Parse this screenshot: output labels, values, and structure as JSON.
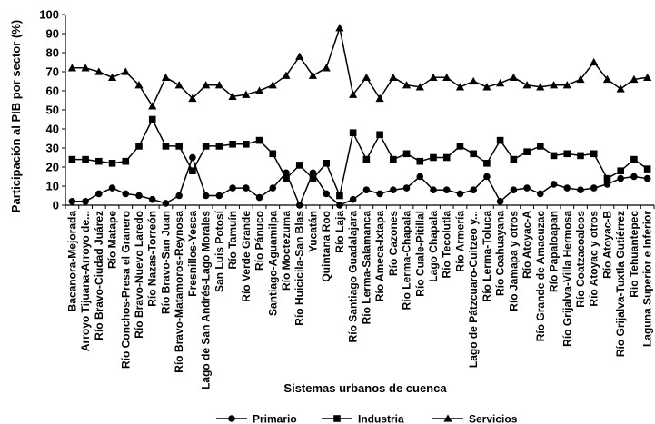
{
  "chart_data": {
    "type": "line",
    "title": "",
    "xlabel": "Sistemas urbanos de cuenca",
    "ylabel": "Participación al PIB por sector (%)",
    "ylim": [
      0,
      100
    ],
    "yticks": [
      0,
      10,
      20,
      30,
      40,
      50,
      60,
      70,
      80,
      90,
      100
    ],
    "grid": false,
    "legend": "bottom",
    "categories": [
      "Bacanora-Mejorada",
      "Arroyo Tijuana-Arroyo de...",
      "Río Bravo-Ciudad Juárez",
      "Río Matape",
      "Río Conchos-Presa el Granero",
      "Río Bravo-Nuevo Laredo",
      "Río Nazas-Torreón",
      "Río Bravo-San Juan",
      "Río Bravo-Matamoros-Reynosa",
      "Fresnillos-Yesca",
      "Lago de San Andrés-Lago Morales",
      "San Luis Potosí",
      "Río Tamuín",
      "Río Verde Grande",
      "Río Pánuco",
      "Santiago-Aguamilpa",
      "Río Moctezuma",
      "Río Huicicila-San Blas",
      "Yucatán",
      "Quintana Roo",
      "Río Laja",
      "Río Santiago Guadalajara",
      "Río Lerma-Salamanca",
      "Río Ameca-Ixtapa",
      "Río Cazones",
      "Río Lerma-Chapala",
      "Río Cuale-Pitillal",
      "Lago Chapala",
      "Río Tecolutla",
      "Río Armería",
      "Lago de Pátzcuaro-Cuitzeo y...",
      "Río Lerma-Toluca",
      "Río Coahuayana",
      "Río Jamapa y otros",
      "Río Atoyac-A",
      "Río Grande de Amacuzac",
      "Río Papaloapan",
      "Río Grijalva-Villa Hermosa",
      "Río Coatzacoalcos",
      "Río Atoyac y otros",
      "Río Atoyac-B",
      "Río Grijalva-Tuxtla Gutiérrez",
      "Río Tehuantepec",
      "Laguna Superior e Inferior"
    ],
    "series": [
      {
        "name": "Primario",
        "marker": "circle",
        "values": [
          2,
          2,
          6,
          9,
          6,
          5,
          3,
          1,
          5,
          25,
          5,
          5,
          9,
          9,
          4,
          9,
          17,
          0,
          17,
          6,
          0,
          3,
          8,
          6,
          8,
          9,
          15,
          8,
          8,
          6,
          8,
          15,
          2,
          8,
          9,
          6,
          11,
          9,
          8,
          9,
          11,
          14,
          15,
          14
        ]
      },
      {
        "name": "Industria",
        "marker": "square",
        "values": [
          24,
          24,
          23,
          22,
          23,
          31,
          45,
          31,
          31,
          18,
          31,
          31,
          32,
          32,
          34,
          27,
          14,
          21,
          14,
          22,
          5,
          38,
          24,
          37,
          24,
          27,
          23,
          25,
          25,
          31,
          27,
          22,
          34,
          24,
          28,
          31,
          26,
          27,
          26,
          27,
          14,
          18,
          24,
          19
        ]
      },
      {
        "name": "Servicios",
        "marker": "triangle",
        "values": [
          72,
          72,
          70,
          67,
          70,
          63,
          52,
          67,
          63,
          56,
          63,
          63,
          57,
          58,
          60,
          63,
          68,
          78,
          68,
          72,
          93,
          58,
          67,
          56,
          67,
          63,
          62,
          67,
          67,
          62,
          65,
          62,
          64,
          67,
          63,
          62,
          63,
          63,
          66,
          75,
          66,
          61,
          66,
          67
        ]
      }
    ]
  }
}
